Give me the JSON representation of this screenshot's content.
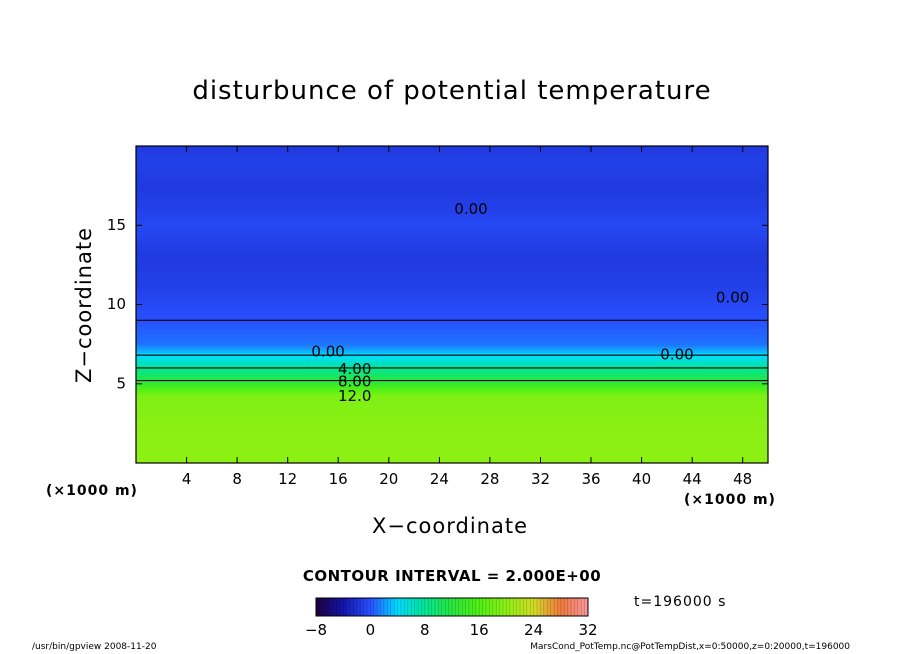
{
  "chart_data": {
    "type": "heatmap",
    "title": "disturbunce of potential temperature",
    "xlabel": "X−coordinate",
    "ylabel": "Z−coordinate",
    "x_unit_left": "(×1000 m)",
    "x_unit_right": "(×1000 m)",
    "xlim": [
      0,
      50
    ],
    "ylim": [
      0,
      20
    ],
    "x_ticks": [
      4,
      8,
      12,
      16,
      20,
      24,
      28,
      32,
      36,
      40,
      44,
      48
    ],
    "y_ticks": [
      5,
      10,
      15
    ],
    "z_profile": {
      "z": [
        0,
        2,
        4.3,
        5.2,
        6.0,
        6.8,
        7.5,
        9,
        11,
        13,
        15,
        16,
        17.5,
        19,
        20
      ],
      "value": [
        20,
        20,
        19,
        12,
        8,
        4,
        1,
        0,
        -1,
        -1.5,
        -0.5,
        -1,
        -1.5,
        -1,
        -1.5
      ]
    },
    "contour_labels": [
      {
        "text": "0.00",
        "x": 26.5,
        "z": 16.0
      },
      {
        "text": "0.00",
        "x": 47.2,
        "z": 10.4
      },
      {
        "text": "0.00",
        "x": 15.2,
        "z": 7.0
      },
      {
        "text": "0.00",
        "x": 42.8,
        "z": 6.8
      },
      {
        "text": "4.00",
        "x": 17.3,
        "z": 5.9
      },
      {
        "text": "8.00",
        "x": 17.3,
        "z": 5.1
      },
      {
        "text": "12.0",
        "x": 17.3,
        "z": 4.2
      }
    ],
    "colorbar": {
      "min": -8,
      "max": 32,
      "ticks": [
        "−8",
        "0",
        "8",
        "16",
        "24",
        "32"
      ],
      "tick_values": [
        -8,
        0,
        8,
        16,
        24,
        32
      ]
    },
    "contour_interval_text": "CONTOUR INTERVAL = 2.000E+00",
    "time_text": "t=196000 s"
  },
  "footer": {
    "left": "/usr/bin/gpview   2008-11-20",
    "right": "MarsCond_PotTemp.nc@PotTempDist,x=0:50000,z=0:20000,t=196000"
  }
}
